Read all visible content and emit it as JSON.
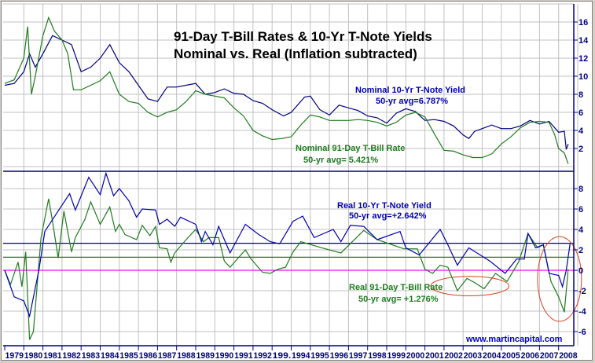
{
  "chart_data": [
    {
      "type": "line",
      "title": "91-Day T-Bill Rates & 10-Yr T-Note Yields",
      "subtitle": "Nominal vs. Real (Inflation subtracted)",
      "ylim": [
        -0.5,
        18
      ],
      "yticks": [
        "2",
        "4",
        "6",
        "8",
        "10",
        "12",
        "14",
        "16"
      ],
      "ytick_values": [
        2,
        4,
        6,
        8,
        10,
        12,
        14,
        16
      ],
      "grid": true,
      "series": [
        {
          "name": "Nominal 10-Yr T-Note Yield",
          "avg_label": "50-yr avg=6.787%",
          "color": "#000080",
          "x": [
            1979.0,
            1979.5,
            1980.0,
            1980.3,
            1980.6,
            1981.0,
            1981.5,
            1982.0,
            1982.5,
            1983.0,
            1983.5,
            1984.0,
            1984.5,
            1985.0,
            1985.5,
            1986.0,
            1986.5,
            1987.0,
            1987.5,
            1988.0,
            1988.5,
            1989.0,
            1989.5,
            1990.0,
            1990.5,
            1991.0,
            1991.5,
            1992.0,
            1992.5,
            1993.0,
            1993.6,
            1994.0,
            1994.7,
            1995.0,
            1995.5,
            1996.0,
            1996.5,
            1997.0,
            1997.5,
            1998.0,
            1998.5,
            1999.0,
            1999.5,
            2000.0,
            2000.5,
            2001.0,
            2001.5,
            2002.0,
            2002.5,
            2003.0,
            2003.3,
            2003.6,
            2004.0,
            2004.5,
            2005.0,
            2005.5,
            2006.0,
            2006.5,
            2007.0,
            2007.5,
            2008.0,
            2008.3,
            2008.4,
            2008.5
          ],
          "y": [
            9.0,
            9.2,
            10.5,
            12.5,
            11.0,
            12.5,
            14.5,
            14.0,
            13.5,
            10.5,
            11.0,
            12.0,
            13.5,
            11.5,
            10.5,
            9.0,
            7.5,
            7.2,
            8.8,
            8.8,
            9.0,
            9.2,
            8.0,
            8.2,
            8.6,
            8.1,
            8.0,
            7.3,
            7.0,
            6.3,
            5.6,
            6.0,
            7.7,
            7.8,
            6.3,
            5.7,
            6.8,
            6.5,
            6.2,
            5.6,
            5.4,
            4.8,
            5.9,
            6.4,
            6.1,
            5.1,
            5.2,
            5.0,
            4.5,
            3.5,
            3.1,
            3.9,
            4.2,
            4.6,
            4.2,
            4.2,
            4.5,
            5.1,
            4.7,
            5.0,
            3.8,
            3.9,
            1.9,
            2.5
          ]
        },
        {
          "name": "Nominal 91-Day T-Bill Rate",
          "avg_label": "50-yr avg= 5.421%",
          "color": "#1e7b1e",
          "x": [
            1979.0,
            1979.5,
            1980.0,
            1980.2,
            1980.4,
            1980.6,
            1981.0,
            1981.3,
            1981.6,
            1982.0,
            1982.3,
            1982.6,
            1983.0,
            1983.5,
            1984.0,
            1984.5,
            1985.0,
            1985.5,
            1986.0,
            1986.5,
            1987.0,
            1987.5,
            1988.0,
            1988.5,
            1989.0,
            1989.5,
            1990.0,
            1990.5,
            1991.0,
            1991.5,
            1992.0,
            1992.5,
            1993.0,
            1993.5,
            1994.0,
            1994.5,
            1995.0,
            1995.5,
            1996.0,
            1996.5,
            1997.0,
            1997.5,
            1998.0,
            1998.5,
            1999.0,
            1999.5,
            2000.0,
            2000.5,
            2001.0,
            2001.5,
            2002.0,
            2002.5,
            2003.0,
            2003.5,
            2004.0,
            2004.5,
            2005.0,
            2005.5,
            2006.0,
            2006.5,
            2007.0,
            2007.5,
            2007.8,
            2008.0,
            2008.3,
            2008.5
          ],
          "y": [
            9.2,
            9.6,
            12.0,
            15.5,
            8.0,
            10.0,
            14.5,
            16.5,
            15.0,
            14.0,
            12.5,
            8.5,
            8.5,
            9.0,
            9.5,
            10.5,
            8.0,
            7.2,
            7.0,
            6.0,
            5.5,
            6.0,
            6.3,
            7.2,
            8.4,
            8.0,
            7.8,
            7.6,
            6.5,
            5.6,
            4.0,
            3.4,
            3.0,
            3.1,
            3.3,
            4.6,
            5.7,
            5.5,
            5.1,
            5.1,
            5.1,
            5.2,
            5.1,
            4.9,
            4.5,
            4.9,
            5.7,
            6.0,
            5.5,
            3.6,
            1.8,
            1.7,
            1.3,
            1.0,
            1.0,
            1.4,
            2.5,
            3.3,
            4.3,
            4.9,
            5.0,
            4.9,
            3.5,
            2.0,
            1.5,
            0.3
          ]
        }
      ]
    },
    {
      "type": "line",
      "ylim": [
        -7.4,
        9.7
      ],
      "yticks": [
        "-6",
        "-4",
        "-2",
        "0",
        "2",
        "4",
        "6",
        "8"
      ],
      "ytick_values": [
        -6,
        -4,
        -2,
        0,
        2,
        4,
        6,
        8
      ],
      "grid": true,
      "xticks": [
        "1979",
        "1980",
        "1981",
        "1982",
        "1983",
        "1984",
        "1985",
        "1986",
        "1987",
        "1988",
        "1989",
        "1990",
        "1991",
        "1992",
        "199.",
        "1994",
        "1995",
        "1996",
        "1997",
        "1998",
        "1999",
        "2000",
        "2001",
        "2002",
        "2003",
        "2004",
        "2005",
        "2006",
        "2007",
        "2008"
      ],
      "reference_lines": [
        {
          "value": 2.642,
          "color": "#000080"
        },
        {
          "value": 1.276,
          "color": "#1e7b1e"
        },
        {
          "value": 0,
          "color": "#ff00ff"
        }
      ],
      "annotations": [
        {
          "shape": "ellipse",
          "color": "#d9401a",
          "x_range": [
            2001.3,
            2005.4
          ],
          "y_range": [
            -2.5,
            -0.6
          ]
        },
        {
          "shape": "ellipse",
          "color": "#d9401a",
          "x_range": [
            2006.9,
            2009.2
          ],
          "y_range": [
            -5.0,
            3.3
          ]
        }
      ],
      "series": [
        {
          "name": "Real 10-Yr T-Note Yield",
          "avg_label": "50-yr avg=+2.642%",
          "color": "#0000b0",
          "x": [
            1979.0,
            1979.5,
            1980.0,
            1980.3,
            1980.8,
            1981.1,
            1981.9,
            1982.4,
            1982.7,
            1983.4,
            1984.0,
            1984.3,
            1984.7,
            1985.0,
            1985.5,
            1985.9,
            1986.2,
            1986.9,
            1987.1,
            1987.5,
            1987.9,
            1988.2,
            1989.0,
            1989.3,
            1989.5,
            1989.9,
            1990.2,
            1990.8,
            1991.6,
            1992.3,
            1992.9,
            1993.4,
            1994.1,
            1994.6,
            1995.2,
            1996.2,
            1996.6,
            1997.1,
            1997.8,
            1998.5,
            1999.7,
            2000.0,
            2000.7,
            2001.8,
            2002.2,
            2002.7,
            2003.3,
            2004.4,
            2005.2,
            2005.8,
            2006.2,
            2006.4,
            2006.8,
            2007.2,
            2007.5,
            2008.0,
            2008.2,
            2008.4,
            2008.6
          ],
          "y": [
            0,
            -2.6,
            -3,
            -4.5,
            0.1,
            3.8,
            6.1,
            7.5,
            5.9,
            9.1,
            7.4,
            9.5,
            7.3,
            8,
            6.8,
            5.2,
            6,
            5.9,
            4.5,
            5,
            4.3,
            5.2,
            4.5,
            2.8,
            3.8,
            2.5,
            4.3,
            1.7,
            4.5,
            3.5,
            2.8,
            2.6,
            4.8,
            5.3,
            3.2,
            4,
            2.8,
            4.4,
            4.3,
            3,
            3.8,
            2.2,
            1.5,
            4,
            2.5,
            0.5,
            2.2,
            0.9,
            -0.3,
            1.1,
            1.1,
            3.6,
            2.2,
            2.5,
            -0.3,
            -0.5,
            -1.6,
            0,
            2.6
          ]
        },
        {
          "name": "Real 91-Day T-Bill Rate",
          "avg_label": "50-yr avg= +1.276%",
          "color": "#1e7b1e",
          "x": [
            1979.0,
            1979.3,
            1979.7,
            1979.9,
            1980.1,
            1980.3,
            1980.5,
            1980.9,
            1981.3,
            1981.5,
            1981.8,
            1982.1,
            1982.5,
            1982.7,
            1983.2,
            1983.5,
            1984.0,
            1984.5,
            1984.8,
            1985.0,
            1985.3,
            1985.9,
            1986.2,
            1986.6,
            1986.9,
            1987.1,
            1987.5,
            1987.7,
            1987.9,
            1988.5,
            1989.0,
            1989.4,
            1989.7,
            1990.2,
            1990.5,
            1990.8,
            1991.6,
            1991.9,
            1992.5,
            1992.9,
            1993.3,
            1993.7,
            1994.1,
            1994.5,
            1995.6,
            1996.6,
            1997.8,
            1998.5,
            1999.9,
            2000.6,
            2001.0,
            2001.4,
            2001.8,
            2002.2,
            2002.7,
            2003.2,
            2003.6,
            2004.1,
            2004.7,
            2005.3,
            2005.9,
            2006.4,
            2006.9,
            2007.2,
            2007.6,
            2008.0,
            2008.3,
            2008.5
          ],
          "y": [
            0,
            -1.4,
            0.8,
            -1.6,
            1.8,
            -6.8,
            -6,
            3.2,
            7,
            4.8,
            1.2,
            5.8,
            1.8,
            3.2,
            5,
            6.7,
            4.5,
            6.2,
            3.8,
            4.5,
            3.5,
            3,
            4.4,
            3.4,
            4.3,
            2.2,
            2.1,
            0.8,
            1.7,
            3,
            4,
            2.8,
            3.2,
            3.2,
            0.9,
            0.3,
            2,
            1.1,
            -0.2,
            -0.3,
            0.1,
            0.3,
            1.8,
            2.8,
            2.2,
            1.7,
            3.9,
            3,
            2.1,
            2.1,
            0.1,
            -0.3,
            0.5,
            0.3,
            -2,
            -0.8,
            -1.2,
            -1.8,
            -0.3,
            -1.1,
            0.8,
            3.6,
            2.2,
            2.5,
            -1.1,
            -2.6,
            -4.1,
            0.1
          ]
        }
      ]
    }
  ],
  "watermark": "www.martincapital.com"
}
